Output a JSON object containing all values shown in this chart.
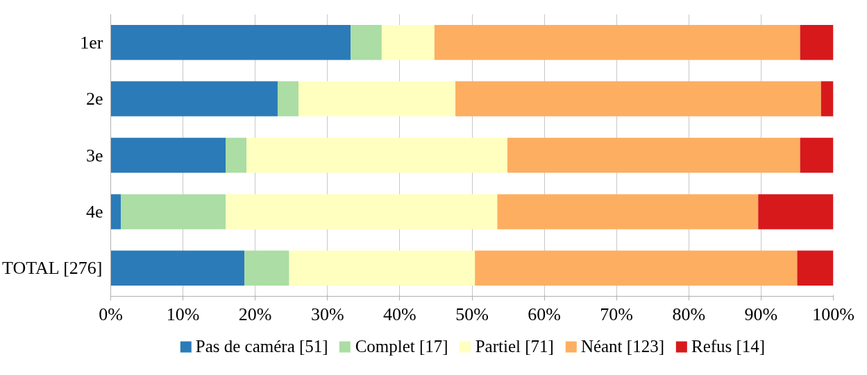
{
  "chart_data": {
    "type": "bar",
    "orientation": "horizontal",
    "stacked": true,
    "categories": [
      "1er",
      "2e",
      "3e",
      "4e",
      "TOTAL [276]"
    ],
    "series": [
      {
        "name": "Pas de caméra [51]",
        "color": "#2b7bb9",
        "values": [
          33.2,
          23.1,
          15.9,
          1.4,
          18.5
        ]
      },
      {
        "name": "Complet [17]",
        "color": "#abdda4",
        "values": [
          4.3,
          2.9,
          2.9,
          14.5,
          6.2
        ]
      },
      {
        "name": "Partiel [71]",
        "color": "#ffffbf",
        "values": [
          7.3,
          21.7,
          36.1,
          37.6,
          25.7
        ]
      },
      {
        "name": "Néant [123]",
        "color": "#fdae61",
        "values": [
          50.6,
          50.6,
          40.5,
          36.1,
          44.6
        ]
      },
      {
        "name": "Refus [14]",
        "color": "#d7191c",
        "values": [
          4.6,
          1.7,
          4.6,
          10.4,
          5.0
        ]
      }
    ],
    "xlim": [
      0,
      100
    ],
    "xticks": [
      {
        "value": 0,
        "label": "0%"
      },
      {
        "value": 10,
        "label": "10%"
      },
      {
        "value": 20,
        "label": "20%"
      },
      {
        "value": 30,
        "label": "30%"
      },
      {
        "value": 40,
        "label": "40%"
      },
      {
        "value": 50,
        "label": "50%"
      },
      {
        "value": 60,
        "label": "60%"
      },
      {
        "value": 70,
        "label": "70%"
      },
      {
        "value": 80,
        "label": "80%"
      },
      {
        "value": 90,
        "label": "90%"
      },
      {
        "value": 100,
        "label": "100%"
      }
    ],
    "grid": "x",
    "legend": "bottom"
  }
}
